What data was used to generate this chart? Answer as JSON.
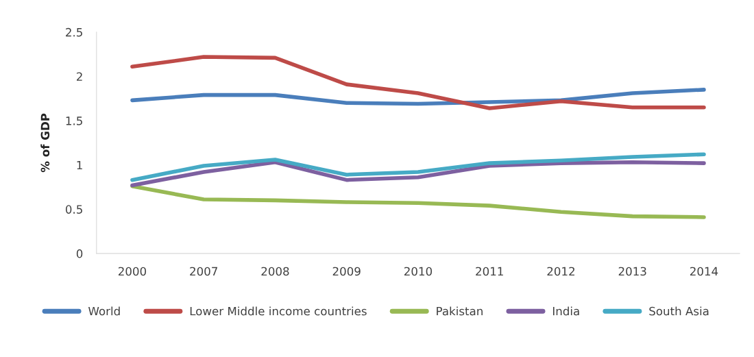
{
  "chart_data": {
    "type": "line",
    "ylabel": "% of GDP",
    "categories": [
      "2000",
      "2007",
      "2008",
      "2009",
      "2010",
      "2011",
      "2012",
      "2013",
      "2014"
    ],
    "series": [
      {
        "name": "World",
        "color": "#4a7ebb",
        "values": [
          1.73,
          1.79,
          1.79,
          1.7,
          1.69,
          1.71,
          1.73,
          1.81,
          1.85
        ]
      },
      {
        "name": "Lower Middle income countries",
        "color": "#be4b48",
        "values": [
          2.11,
          2.22,
          2.21,
          1.91,
          1.81,
          1.64,
          1.72,
          1.65,
          1.65
        ]
      },
      {
        "name": "Pakistan",
        "color": "#98b954",
        "values": [
          0.76,
          0.61,
          0.6,
          0.58,
          0.57,
          0.54,
          0.47,
          0.42,
          0.41
        ]
      },
      {
        "name": "India",
        "color": "#7d60a0",
        "values": [
          0.77,
          0.92,
          1.03,
          0.83,
          0.86,
          0.99,
          1.02,
          1.03,
          1.02
        ]
      },
      {
        "name": "South Asia",
        "color": "#46aac5",
        "values": [
          0.83,
          0.99,
          1.06,
          0.89,
          0.92,
          1.02,
          1.05,
          1.09,
          1.12
        ]
      }
    ],
    "ylim": [
      0,
      2.5
    ],
    "yticks": [
      0,
      0.5,
      1,
      1.5,
      2,
      2.5
    ],
    "grid": false,
    "legend": "bottom",
    "marker": "none",
    "line_style": "solid"
  }
}
